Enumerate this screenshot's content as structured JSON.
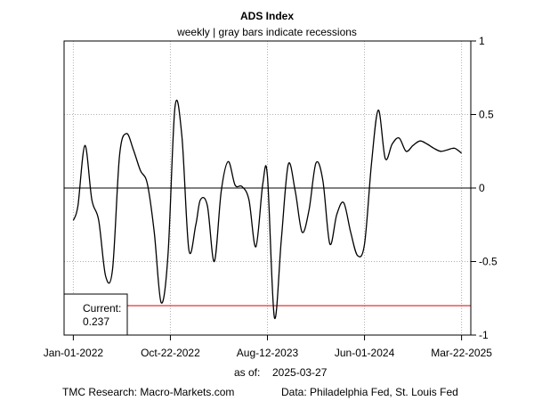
{
  "chart_data": {
    "type": "line",
    "title": "ADS Index",
    "subtitle": "weekly | gray bars indicate recessions",
    "x_ticks": [
      "Jan-01-2022",
      "Oct-22-2022",
      "Aug-12-2023",
      "Jun-01-2024",
      "Mar-22-2025"
    ],
    "y_ticks": [
      "1",
      "0.5",
      "0",
      "-0.5",
      "-1"
    ],
    "y_tick_values": [
      1,
      0.5,
      0,
      -0.5,
      -1
    ],
    "xlim": [
      "2021-12-04",
      "2025-04-19"
    ],
    "ylim": [
      -1,
      1
    ],
    "grid": true,
    "y_axis_side": "right",
    "zero_line": true,
    "reference_line": {
      "value": -0.8,
      "color": "#dd0000"
    },
    "current_box": {
      "label": "Current:",
      "value": "0.237"
    },
    "as_of_label": "as of:",
    "as_of_date": "2025-03-27",
    "source_left": "TMC Research: Macro-Markets.com",
    "source_right": "Data: Philadelphia Fed, St. Louis Fed",
    "series": [
      {
        "color": "#000000",
        "x": [
          "2022-01-01",
          "2022-01-15",
          "2022-02-05",
          "2022-02-26",
          "2022-03-19",
          "2022-04-09",
          "2022-04-30",
          "2022-05-21",
          "2022-06-11",
          "2022-07-02",
          "2022-07-23",
          "2022-08-13",
          "2022-09-03",
          "2022-09-24",
          "2022-10-15",
          "2022-11-05",
          "2022-11-26",
          "2022-12-17",
          "2023-01-07",
          "2023-01-21",
          "2023-02-11",
          "2023-03-04",
          "2023-03-25",
          "2023-04-15",
          "2023-05-06",
          "2023-05-27",
          "2023-06-17",
          "2023-07-08",
          "2023-07-29",
          "2023-08-12",
          "2023-09-02",
          "2023-09-23",
          "2023-10-14",
          "2023-11-04",
          "2023-11-25",
          "2023-12-16",
          "2024-01-06",
          "2024-01-27",
          "2024-02-17",
          "2024-03-09",
          "2024-03-30",
          "2024-04-20",
          "2024-05-11",
          "2024-06-01",
          "2024-06-22",
          "2024-07-13",
          "2024-08-03",
          "2024-08-24",
          "2024-09-14",
          "2024-10-05",
          "2024-10-26",
          "2024-11-16",
          "2024-12-07",
          "2024-12-28",
          "2025-01-18",
          "2025-02-08",
          "2025-03-01",
          "2025-03-22"
        ],
        "y": [
          -0.22,
          -0.12,
          0.29,
          -0.08,
          -0.22,
          -0.6,
          -0.55,
          0.22,
          0.37,
          0.26,
          0.12,
          0.03,
          -0.3,
          -0.78,
          -0.45,
          0.55,
          0.35,
          -0.42,
          -0.25,
          -0.08,
          -0.12,
          -0.5,
          -0.02,
          0.18,
          0.02,
          0.01,
          -0.08,
          -0.4,
          0.03,
          0.08,
          -0.88,
          -0.35,
          0.16,
          -0.02,
          -0.3,
          -0.15,
          0.17,
          0.05,
          -0.38,
          -0.18,
          -0.1,
          -0.3,
          -0.46,
          -0.38,
          0.16,
          0.53,
          0.2,
          0.3,
          0.34,
          0.25,
          0.29,
          0.32,
          0.3,
          0.27,
          0.25,
          0.26,
          0.27,
          0.237
        ]
      }
    ]
  }
}
